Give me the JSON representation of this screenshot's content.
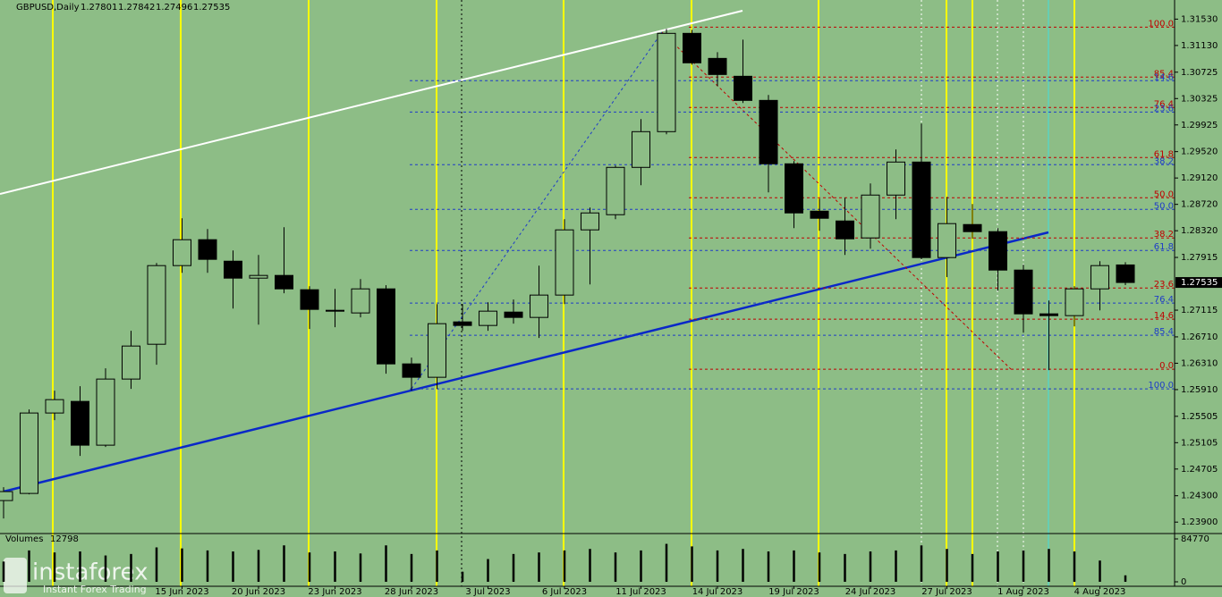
{
  "header": {
    "symbol": "GBPUSD,Daily",
    "values": [
      1.27801,
      1.27842,
      1.27496,
      1.27535
    ]
  },
  "watermark": {
    "brand": "instaforex",
    "tagline": "Instant Forex Trading"
  },
  "chart_data": {
    "type": "candlestick",
    "categories": [
      null,
      null,
      null,
      null,
      null,
      null,
      null,
      "15 Jun 2023",
      null,
      null,
      "20 Jun 2023",
      null,
      null,
      "23 Jun 2023",
      null,
      null,
      "28 Jun 2023",
      null,
      null,
      "3 Jul 2023",
      null,
      null,
      "6 Jul 2023",
      null,
      null,
      "11 Jul 2023",
      null,
      null,
      "14 Jul 2023",
      null,
      null,
      "19 Jul 2023",
      null,
      null,
      "24 Jul 2023",
      null,
      null,
      "27 Jul 2023",
      null,
      null,
      "1 Aug 2023",
      null,
      null,
      "4 Aug 2023",
      null
    ],
    "open": [
      1.24227,
      1.24335,
      1.25555,
      1.25731,
      1.25067,
      1.2607,
      1.26598,
      1.27791,
      1.28184,
      1.27858,
      1.27601,
      1.27642,
      1.27425,
      1.27113,
      1.27073,
      1.27438,
      1.263,
      1.26097,
      1.26937,
      1.26883,
      1.27086,
      1.27005,
      1.27344,
      1.28333,
      1.28563,
      1.29281,
      1.29823,
      1.31314,
      1.30934,
      1.30663,
      1.30297,
      1.29335,
      1.28617,
      1.28468,
      1.28211,
      1.28861,
      1.29362,
      1.27913,
      1.28414,
      1.28306,
      1.27723,
      1.27059,
      1.27032,
      1.27438,
      1.27801
    ],
    "high": [
      1.2443,
      1.25609,
      1.25894,
      1.25961,
      1.26232,
      1.26802,
      1.27831,
      1.28509,
      1.28346,
      1.28021,
      1.27953,
      1.28373,
      1.27479,
      1.27438,
      1.27587,
      1.27493,
      1.26395,
      1.27208,
      1.27208,
      1.27235,
      1.27276,
      1.27791,
      1.28495,
      1.28671,
      1.29308,
      1.30013,
      1.31381,
      1.31368,
      1.31029,
      1.31219,
      1.30379,
      1.29376,
      1.28807,
      1.2882,
      1.29037,
      1.29552,
      1.29945,
      1.28834,
      1.28726,
      1.2836,
      1.27804,
      1.27262,
      1.27479,
      1.27858,
      1.27842
    ],
    "low": [
      1.23956,
      1.24322,
      1.25447,
      1.24905,
      1.2504,
      1.25921,
      1.26287,
      1.27682,
      1.27682,
      1.2714,
      1.26896,
      1.27371,
      1.26829,
      1.26856,
      1.27005,
      1.26151,
      1.25894,
      1.25921,
      1.26802,
      1.26802,
      1.2691,
      1.26693,
      1.27208,
      1.27506,
      1.28495,
      1.2901,
      1.29783,
      1.30839,
      1.30514,
      1.30257,
      1.28902,
      1.2836,
      1.28319,
      1.27953,
      1.28048,
      1.28495,
      1.27886,
      1.27615,
      1.28197,
      1.27411,
      1.26774,
      1.26205,
      1.26869,
      1.27113,
      1.27496
    ],
    "close": [
      1.24363,
      1.25555,
      1.25758,
      1.25067,
      1.2607,
      1.26571,
      1.27791,
      1.28184,
      1.27886,
      1.27601,
      1.27642,
      1.27438,
      1.27127,
      1.271,
      1.27438,
      1.263,
      1.26097,
      1.2691,
      1.26883,
      1.271,
      1.27005,
      1.27344,
      1.28333,
      1.2859,
      1.29281,
      1.29823,
      1.31314,
      1.30867,
      1.3069,
      1.30297,
      1.29335,
      1.2859,
      1.28509,
      1.28197,
      1.28861,
      1.29362,
      1.27913,
      1.28428,
      1.28306,
      1.27723,
      1.27059,
      1.27032,
      1.27438,
      1.27791,
      1.27535
    ],
    "ylim": [
      1.2374,
      1.3182
    ],
    "yticks": [
      {
        "value": 1.3153,
        "label": "1.31530"
      },
      {
        "value": 1.3113,
        "label": "1.31130"
      },
      {
        "value": 1.30725,
        "label": "1.30725"
      },
      {
        "value": 1.30325,
        "label": "1.30325"
      },
      {
        "value": 1.29925,
        "label": "1.29925"
      },
      {
        "value": 1.2952,
        "label": "1.29520"
      },
      {
        "value": 1.2912,
        "label": "1.29120"
      },
      {
        "value": 1.2872,
        "label": "1.28720"
      },
      {
        "value": 1.2832,
        "label": "1.28320"
      },
      {
        "value": 1.27915,
        "label": "1.27915"
      },
      {
        "value": 1.27115,
        "label": "1.27115"
      },
      {
        "value": 1.2671,
        "label": "1.26710"
      },
      {
        "value": 1.2631,
        "label": "1.26310"
      },
      {
        "value": 1.2591,
        "label": "1.25910"
      },
      {
        "value": 1.25505,
        "label": "1.25505"
      },
      {
        "value": 1.25105,
        "label": "1.25105"
      },
      {
        "value": 1.24705,
        "label": "1.24705"
      },
      {
        "value": 1.243,
        "label": "1.24300"
      },
      {
        "value": 1.239,
        "label": "1.23900"
      }
    ],
    "up_color": "#8dbd86",
    "down_color": "#000000",
    "fib_red": [
      {
        "label": "100.0",
        "price": 1.31409
      },
      {
        "label": "85.4",
        "price": 1.3065
      },
      {
        "label": "76.4",
        "price": 1.30189
      },
      {
        "label": "61.8",
        "price": 1.2943
      },
      {
        "label": "50.0",
        "price": 1.2882
      },
      {
        "label": "38.2",
        "price": 1.28211
      },
      {
        "label": "23.6",
        "price": 1.27452
      },
      {
        "label": "14.6",
        "price": 1.26978
      },
      {
        "label": "0.0",
        "price": 1.26219
      }
    ],
    "fib_blue": [
      {
        "label": "14.6",
        "price": 1.30596
      },
      {
        "label": "23.6",
        "price": 1.30121
      },
      {
        "label": "38.2",
        "price": 1.29322
      },
      {
        "label": "50.0",
        "price": 1.28644
      },
      {
        "label": "61.8",
        "price": 1.28021
      },
      {
        "label": "76.4",
        "price": 1.27222
      },
      {
        "label": "85.4",
        "price": 1.26734
      },
      {
        "label": "100.0",
        "price": 1.25921
      }
    ],
    "volume": {
      "title": "Volumes",
      "values": [
        40000,
        62000,
        58000,
        60000,
        52000,
        55000,
        68000,
        66000,
        62000,
        60000,
        63000,
        72000,
        58000,
        60000,
        56000,
        72000,
        55000,
        62000,
        20000,
        45000,
        55000,
        58000,
        62000,
        65000,
        58000,
        62000,
        75000,
        70000,
        62000,
        65000,
        60000,
        62000,
        58000,
        55000,
        60000,
        62000,
        72000,
        65000,
        55000,
        60000,
        62000,
        65000,
        60000,
        42000,
        12798
      ],
      "ylim": [
        0,
        84770
      ],
      "yticks": [
        0,
        84770
      ]
    }
  }
}
